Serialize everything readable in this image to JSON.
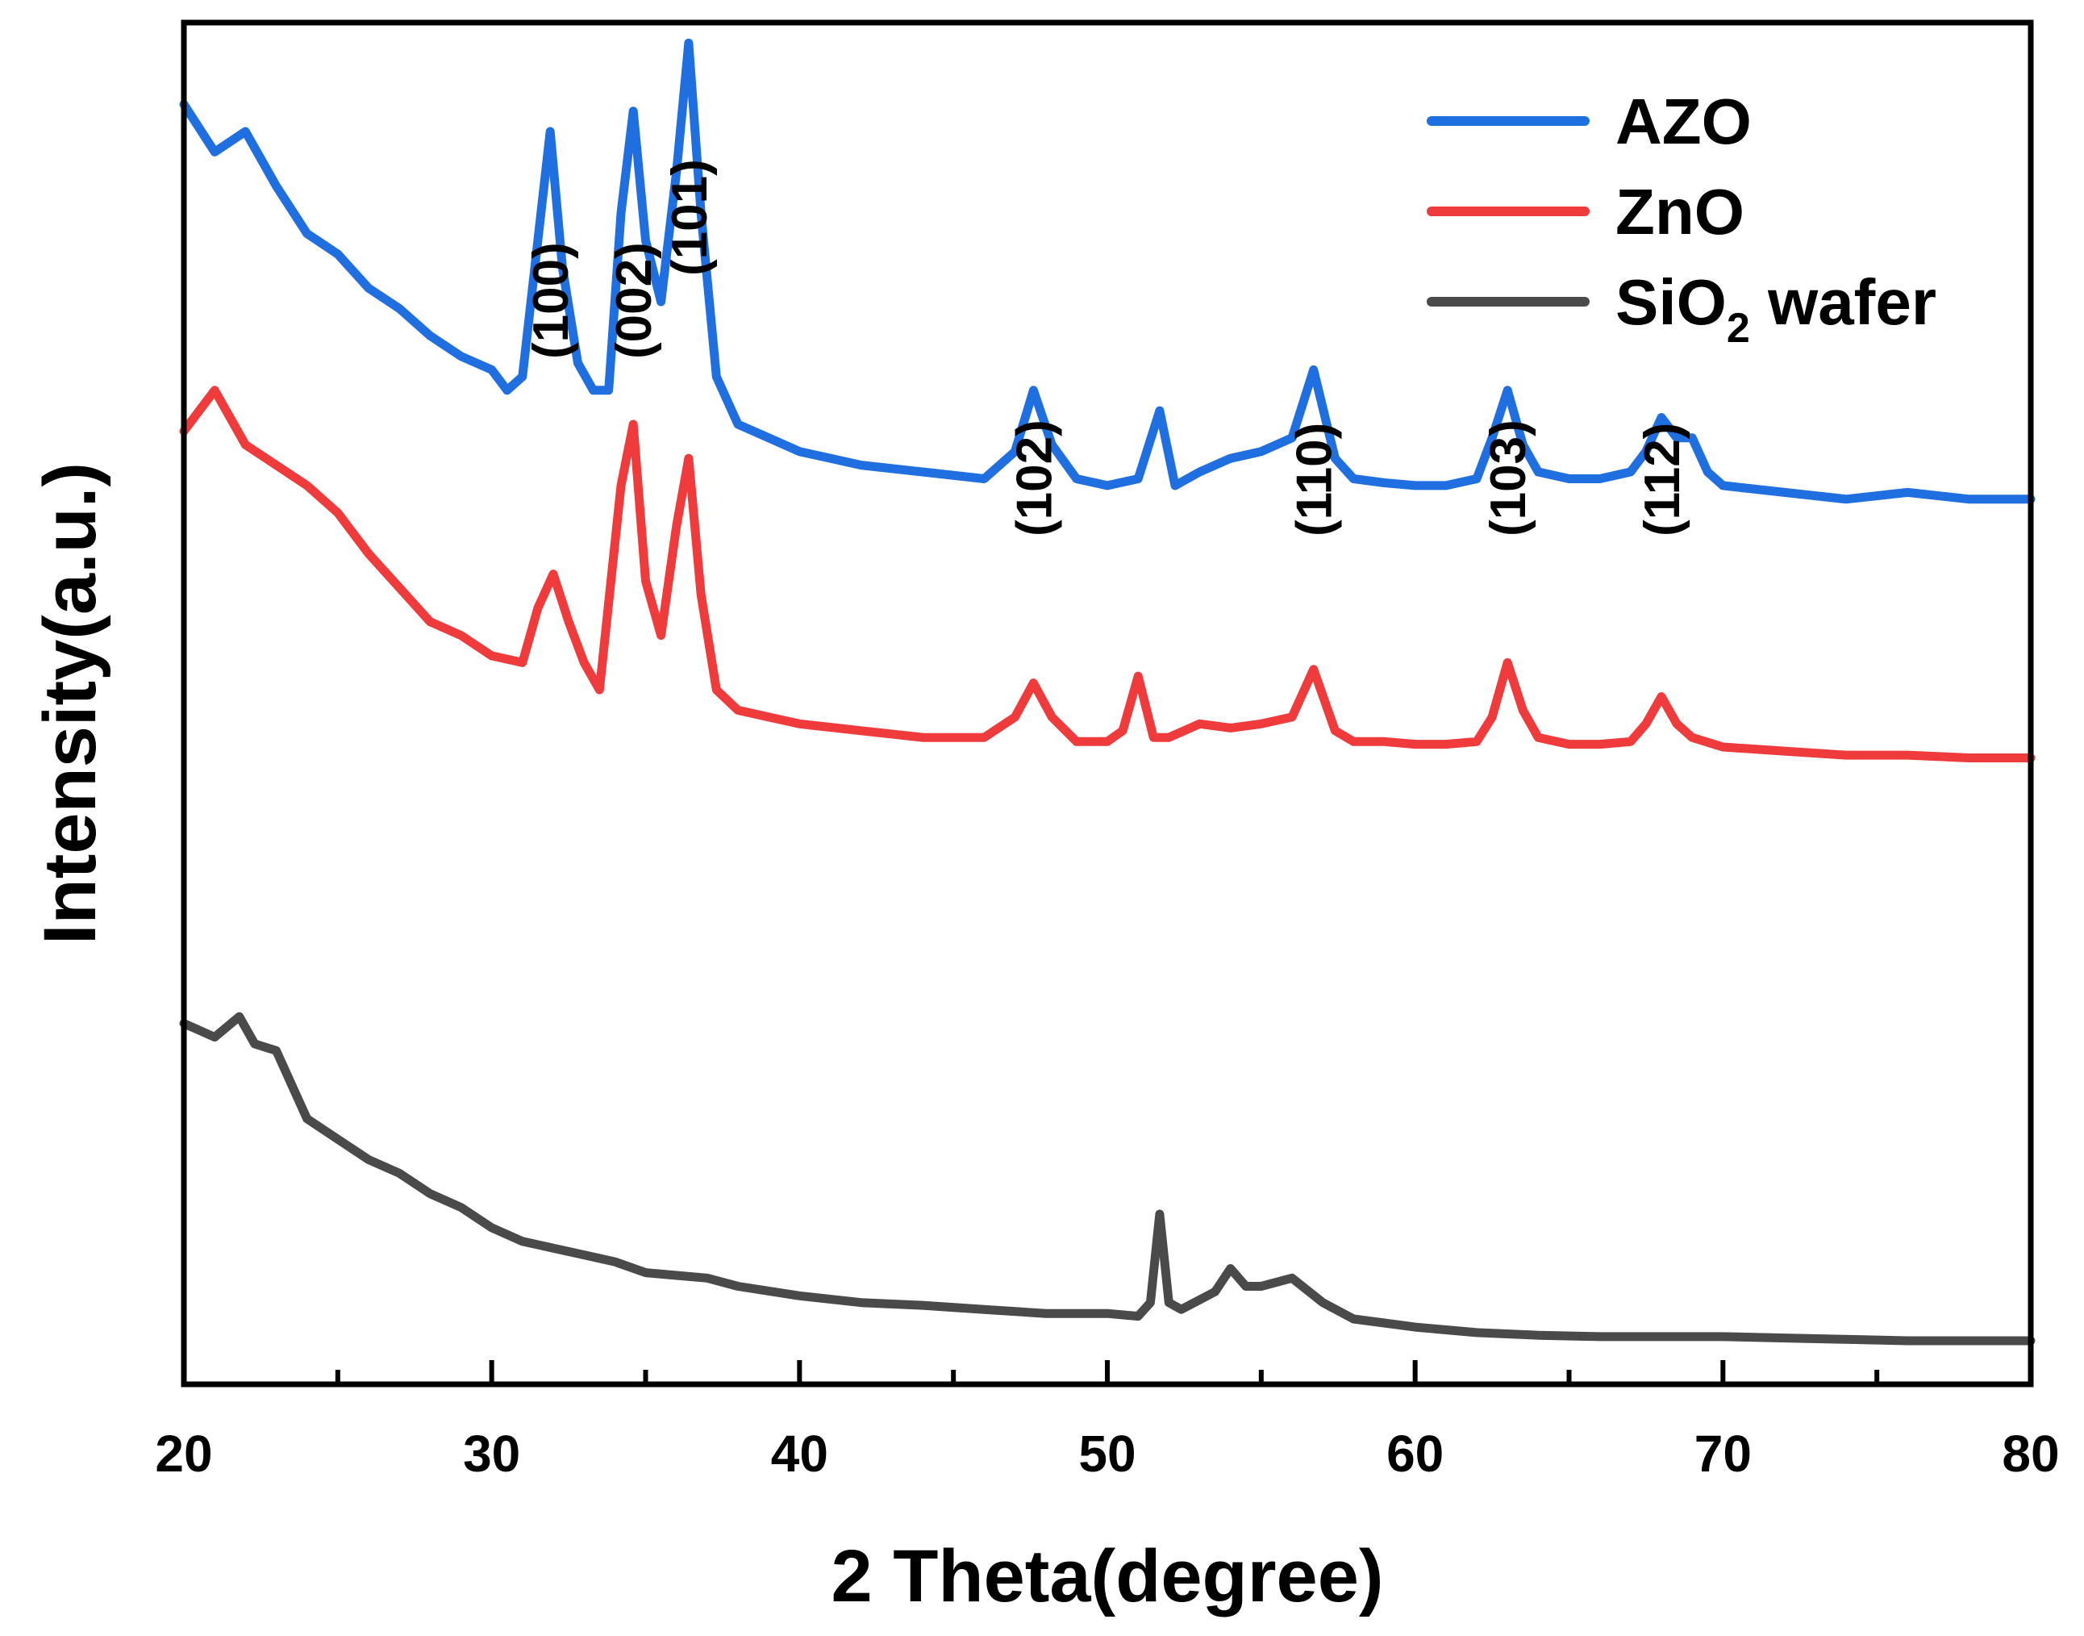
{
  "chart_data": {
    "type": "line",
    "xlabel": "2 Theta(degree)",
    "ylabel": "Intensity(a.u.)",
    "xlim": [
      20,
      80
    ],
    "ylim": [
      0,
      10
    ],
    "x_ticks": [
      20,
      30,
      40,
      50,
      60,
      70,
      80
    ],
    "x_tick_labels": [
      "20",
      "30",
      "40",
      "50",
      "60",
      "70",
      "80"
    ],
    "legend_position": "top-right",
    "legend": [
      {
        "label": "AZO",
        "color": "#1f6fe0"
      },
      {
        "label": "ZnO",
        "color": "#ef3b3b"
      },
      {
        "label": "SiO",
        "sub": "2",
        "suffix": " wafer",
        "color": "#4a4a4a"
      }
    ],
    "peak_labels": [
      {
        "text": "(100)",
        "x": 31.9
      },
      {
        "text": "(002)",
        "x": 34.6
      },
      {
        "text": "(101)",
        "x": 36.4
      },
      {
        "text": "(102)",
        "x": 47.6
      },
      {
        "text": "(110)",
        "x": 56.7
      },
      {
        "text": "(103)",
        "x": 63.0
      },
      {
        "text": "(112)",
        "x": 68.0
      }
    ],
    "series": [
      {
        "name": "AZO",
        "color": "#1f6fe0",
        "x": [
          20,
          21,
          22,
          23,
          24,
          25,
          26,
          27,
          28,
          29,
          30,
          30.5,
          31,
          31.5,
          31.9,
          32.3,
          32.8,
          33.3,
          33.8,
          34.2,
          34.6,
          35.0,
          35.5,
          36.0,
          36.4,
          36.8,
          37.3,
          38,
          39,
          40,
          42,
          44,
          46,
          47,
          47.6,
          48.2,
          49,
          50,
          51,
          51.7,
          52.2,
          53,
          54,
          55,
          56,
          56.7,
          57.4,
          58,
          59,
          60,
          61,
          62,
          62.5,
          63.0,
          63.5,
          64,
          65,
          66,
          67,
          67.5,
          68.0,
          68.5,
          69.0,
          69.5,
          70,
          72,
          74,
          76,
          78,
          80
        ],
        "y": [
          9.4,
          9.05,
          9.2,
          8.8,
          8.45,
          8.3,
          8.05,
          7.9,
          7.7,
          7.55,
          7.45,
          7.3,
          7.4,
          8.4,
          9.2,
          8.2,
          7.5,
          7.3,
          7.3,
          8.6,
          9.35,
          8.4,
          7.95,
          8.9,
          9.85,
          8.6,
          7.4,
          7.05,
          6.95,
          6.85,
          6.75,
          6.7,
          6.65,
          6.85,
          7.3,
          6.9,
          6.65,
          6.6,
          6.65,
          7.15,
          6.6,
          6.7,
          6.8,
          6.85,
          6.95,
          7.45,
          6.8,
          6.65,
          6.62,
          6.6,
          6.6,
          6.65,
          6.95,
          7.3,
          6.9,
          6.7,
          6.65,
          6.65,
          6.7,
          6.85,
          7.1,
          6.95,
          6.95,
          6.7,
          6.6,
          6.55,
          6.5,
          6.55,
          6.5,
          6.5
        ]
      },
      {
        "name": "ZnO",
        "color": "#ef3b3b",
        "x": [
          20,
          21,
          22,
          23,
          24,
          25,
          26,
          27,
          28,
          29,
          30,
          31,
          31.5,
          32.0,
          32.5,
          33,
          33.5,
          34.2,
          34.6,
          35.0,
          35.5,
          36.0,
          36.4,
          36.8,
          37.3,
          38,
          39,
          40,
          42,
          44,
          46,
          47,
          47.6,
          48.2,
          49,
          50,
          50.5,
          51.0,
          51.5,
          52,
          53,
          54,
          55,
          56,
          56.7,
          57.4,
          58,
          59,
          60,
          61,
          62,
          62.5,
          63.0,
          63.5,
          64,
          65,
          66,
          67,
          67.5,
          68.0,
          68.5,
          69.0,
          70,
          72,
          74,
          76,
          78,
          80
        ],
        "y": [
          7.0,
          7.3,
          6.9,
          6.75,
          6.6,
          6.4,
          6.1,
          5.85,
          5.6,
          5.5,
          5.35,
          5.3,
          5.7,
          5.95,
          5.6,
          5.3,
          5.1,
          6.6,
          7.05,
          5.9,
          5.5,
          6.3,
          6.8,
          5.8,
          5.1,
          4.95,
          4.9,
          4.85,
          4.8,
          4.75,
          4.75,
          4.9,
          5.15,
          4.9,
          4.72,
          4.72,
          4.8,
          5.2,
          4.75,
          4.75,
          4.85,
          4.82,
          4.85,
          4.9,
          5.25,
          4.8,
          4.72,
          4.72,
          4.7,
          4.7,
          4.72,
          4.9,
          5.3,
          4.95,
          4.75,
          4.7,
          4.7,
          4.72,
          4.85,
          5.05,
          4.85,
          4.75,
          4.68,
          4.65,
          4.62,
          4.62,
          4.6,
          4.6
        ]
      },
      {
        "name": "SiO2 wafer",
        "color": "#4a4a4a",
        "x": [
          20,
          21,
          21.8,
          22.3,
          23,
          23.5,
          24,
          25,
          26,
          27,
          28,
          29,
          30,
          31,
          32,
          33,
          34,
          35,
          36,
          37,
          38,
          40,
          42,
          44,
          46,
          48,
          50,
          51,
          51.4,
          51.7,
          52.0,
          52.4,
          53,
          53.5,
          54.0,
          54.5,
          55,
          56,
          57,
          58,
          59,
          60,
          62,
          64,
          66,
          68,
          70,
          72,
          74,
          76,
          78,
          80
        ],
        "y": [
          2.65,
          2.55,
          2.7,
          2.5,
          2.45,
          2.2,
          1.95,
          1.8,
          1.65,
          1.55,
          1.4,
          1.3,
          1.15,
          1.05,
          1.0,
          0.95,
          0.9,
          0.82,
          0.8,
          0.78,
          0.72,
          0.65,
          0.6,
          0.58,
          0.55,
          0.52,
          0.52,
          0.5,
          0.6,
          1.25,
          0.6,
          0.55,
          0.62,
          0.68,
          0.85,
          0.72,
          0.72,
          0.78,
          0.6,
          0.48,
          0.45,
          0.42,
          0.38,
          0.36,
          0.35,
          0.35,
          0.35,
          0.34,
          0.33,
          0.32,
          0.32,
          0.32
        ]
      }
    ]
  }
}
